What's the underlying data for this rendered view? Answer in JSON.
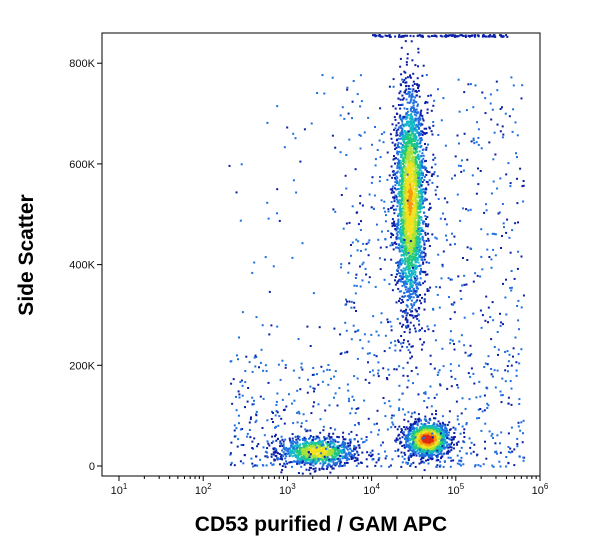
{
  "chart_data": {
    "type": "scatter",
    "subtype": "flow cytometry density dot plot",
    "title": "",
    "xlabel": "CD53 purified / GAM APC",
    "ylabel": "Side Scatter",
    "x_scale": "log",
    "xlim": [
      10,
      1000000
    ],
    "ylim": [
      0,
      860000
    ],
    "x_ticks": [
      {
        "base": "10",
        "exp": "1",
        "value": 10
      },
      {
        "base": "10",
        "exp": "2",
        "value": 100
      },
      {
        "base": "10",
        "exp": "3",
        "value": 1000
      },
      {
        "base": "10",
        "exp": "4",
        "value": 10000
      },
      {
        "base": "10",
        "exp": "5",
        "value": 100000
      },
      {
        "base": "10",
        "exp": "6",
        "value": 1000000
      }
    ],
    "y_ticks": [
      {
        "label": "0",
        "value": 0
      },
      {
        "label": "200K",
        "value": 200000
      },
      {
        "label": "400K",
        "value": 400000
      },
      {
        "label": "600K",
        "value": 600000
      },
      {
        "label": "800K",
        "value": 800000
      }
    ],
    "grid": false,
    "legend": "none",
    "colormap": [
      "#0a1fa8",
      "#1e6fe0",
      "#14b8c8",
      "#22c97a",
      "#a8e23a",
      "#f2e21e",
      "#f59a12",
      "#e02a10"
    ],
    "populations": [
      {
        "name_hint": "lymphocytes",
        "center_x": 2200,
        "center_y": 30000,
        "spread_log_x": 0.22,
        "spread_y": 15000,
        "relative_count": 900
      },
      {
        "name_hint": "monocytes",
        "center_x": 45000,
        "center_y": 55000,
        "spread_log_x": 0.13,
        "spread_y": 17000,
        "relative_count": 1300
      },
      {
        "name_hint": "granulocytes",
        "center_x": 28000,
        "center_y": 530000,
        "spread_log_x": 0.09,
        "spread_y": 110000,
        "relative_count": 2600
      }
    ]
  }
}
